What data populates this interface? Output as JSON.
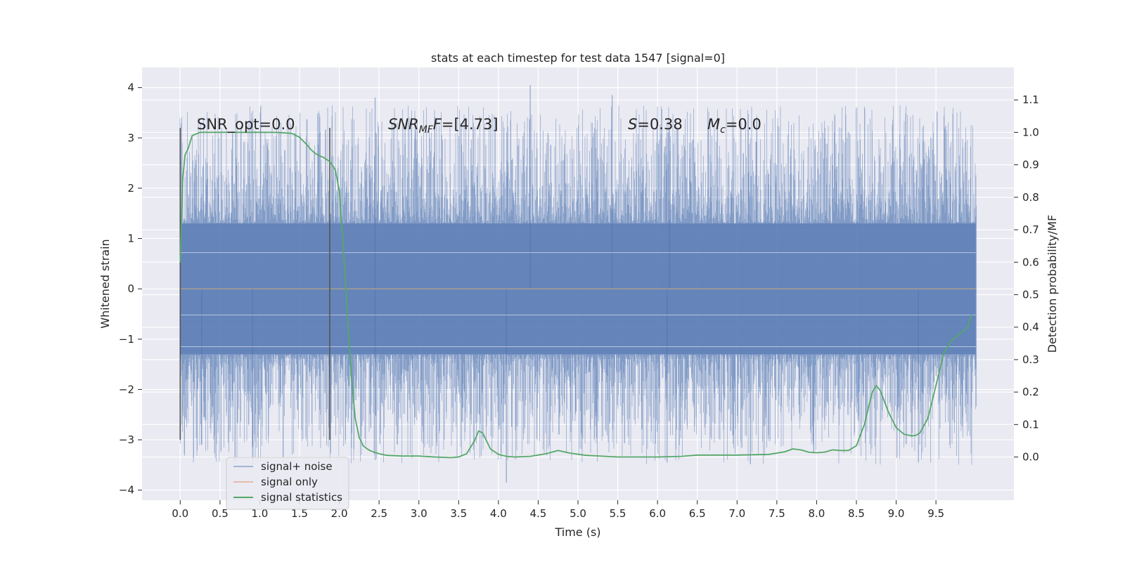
{
  "chart_data": {
    "type": "line",
    "title": "stats at each timestep for test data 1547 [signal=0]",
    "xlabel": "Time (s)",
    "ylabel": "Whitened strain",
    "y2label": "Detection probability/MF",
    "xlim": [
      -0.48,
      10.48
    ],
    "ylim": [
      -4.2,
      4.4
    ],
    "y2lim": [
      -0.133,
      1.2
    ],
    "x_ticks": [
      "0.0",
      "0.5",
      "1.0",
      "1.5",
      "2.0",
      "2.5",
      "3.0",
      "3.5",
      "4.0",
      "4.5",
      "5.0",
      "5.5",
      "6.0",
      "6.5",
      "7.0",
      "7.5",
      "8.0",
      "8.5",
      "9.0",
      "9.5"
    ],
    "y_ticks": [
      "4",
      "3",
      "2",
      "1",
      "0",
      "−1",
      "−2",
      "−3",
      "−4"
    ],
    "y2_ticks": [
      "1.1",
      "1.0",
      "0.9",
      "0.8",
      "0.7",
      "0.6",
      "0.5",
      "0.4",
      "0.3",
      "0.2",
      "0.1",
      "0.0"
    ],
    "grid": true,
    "legend_position": "lower left",
    "annotations": {
      "snr_opt": "SNR_opt=0.0",
      "snr_mf_a": "SNR",
      "snr_mf_sub": "MF",
      "snr_mf_b": "=[4.73]",
      "s_sym": "S",
      "s_val": "=0.38",
      "mc_sym": "M",
      "mc_sub": "c",
      "mc_val": "=0.0"
    },
    "vlines": [
      0.0,
      1.88
    ],
    "series": [
      {
        "name": "signal+ noise",
        "color": "#4c72b0",
        "axis": "left",
        "x_range": [
          0.0,
          10.0
        ],
        "sample_rate": 2048,
        "core_amplitude": 1.3,
        "peak_max": 4.05,
        "peak_min": -3.85,
        "notable_peaks": [
          [
            2.45,
            3.8
          ],
          [
            4.4,
            4.05
          ],
          [
            5.43,
            3.85
          ],
          [
            6.15,
            3.2
          ],
          [
            2.45,
            -3.4
          ],
          [
            4.1,
            -3.85
          ],
          [
            6.12,
            -3.45
          ],
          [
            9.28,
            -3.45
          ],
          [
            0.27,
            -3.1
          ],
          [
            0.91,
            -3.15
          ]
        ]
      },
      {
        "name": "signal only",
        "color": "#dd8452",
        "axis": "left",
        "x": [
          0.0,
          10.0
        ],
        "y": [
          0.0,
          0.0
        ]
      },
      {
        "name": "signal statistics",
        "color": "#55a868",
        "axis": "right",
        "x": [
          0.0,
          0.03,
          0.06,
          0.1,
          0.15,
          0.25,
          0.4,
          0.6,
          0.8,
          1.0,
          1.2,
          1.4,
          1.5,
          1.6,
          1.65,
          1.7,
          1.75,
          1.8,
          1.85,
          1.88,
          1.95,
          2.0,
          2.05,
          2.1,
          2.15,
          2.2,
          2.25,
          2.3,
          2.35,
          2.4,
          2.5,
          2.6,
          2.8,
          3.0,
          3.2,
          3.4,
          3.5,
          3.6,
          3.7,
          3.75,
          3.8,
          3.85,
          3.9,
          4.0,
          4.1,
          4.2,
          4.4,
          4.6,
          4.75,
          4.9,
          5.1,
          5.5,
          6.0,
          6.3,
          6.5,
          7.0,
          7.4,
          7.6,
          7.7,
          7.8,
          7.9,
          8.0,
          8.1,
          8.2,
          8.3,
          8.4,
          8.5,
          8.6,
          8.7,
          8.75,
          8.8,
          8.9,
          9.0,
          9.1,
          9.2,
          9.25,
          9.3,
          9.4,
          9.5,
          9.6,
          9.7,
          9.8,
          9.9,
          9.95
        ],
        "y": [
          0.6,
          0.85,
          0.93,
          0.95,
          0.99,
          1.0,
          1.0,
          1.0,
          1.0,
          1.0,
          1.0,
          0.997,
          0.985,
          0.96,
          0.945,
          0.935,
          0.928,
          0.923,
          0.915,
          0.91,
          0.885,
          0.82,
          0.65,
          0.45,
          0.25,
          0.12,
          0.06,
          0.035,
          0.025,
          0.018,
          0.01,
          0.005,
          0.003,
          0.003,
          0.0,
          -0.002,
          0.0,
          0.01,
          0.05,
          0.08,
          0.075,
          0.05,
          0.025,
          0.008,
          0.002,
          0.0,
          0.002,
          0.01,
          0.02,
          0.012,
          0.005,
          0.0,
          0.0,
          0.002,
          0.006,
          0.006,
          0.008,
          0.016,
          0.025,
          0.022,
          0.015,
          0.013,
          0.015,
          0.022,
          0.02,
          0.02,
          0.035,
          0.1,
          0.2,
          0.22,
          0.205,
          0.14,
          0.09,
          0.07,
          0.065,
          0.067,
          0.075,
          0.12,
          0.22,
          0.32,
          0.36,
          0.38,
          0.4,
          0.44
        ]
      }
    ]
  }
}
